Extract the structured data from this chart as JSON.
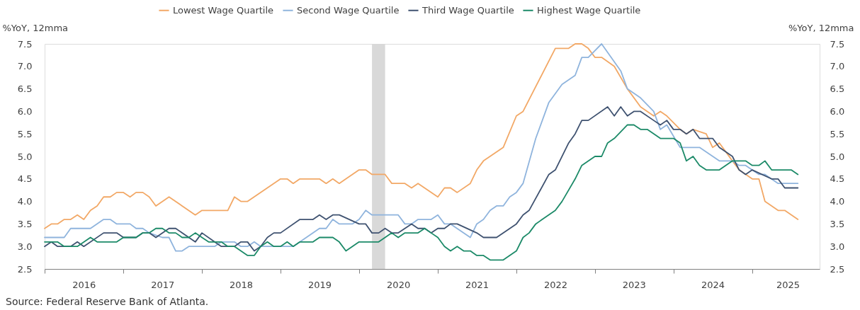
{
  "chart_data": {
    "type": "line",
    "ylabel": "%YoY, 12mma",
    "y2label": "%YoY, 12mma",
    "xlim": [
      "2016-01-01",
      "2025-11-10"
    ],
    "xticks": [
      {
        "value": "2016-01-01",
        "label": null
      },
      {
        "value": "2016-07-01",
        "label": "2016"
      },
      {
        "value": "2017-01-01",
        "label": null
      },
      {
        "value": "2017-07-01",
        "label": "2017"
      },
      {
        "value": "2018-01-01",
        "label": null
      },
      {
        "value": "2018-07-01",
        "label": "2018"
      },
      {
        "value": "2019-01-01",
        "label": null
      },
      {
        "value": "2019-07-01",
        "label": "2019"
      },
      {
        "value": "2020-01-01",
        "label": null
      },
      {
        "value": "2020-07-01",
        "label": "2020"
      },
      {
        "value": "2021-01-01",
        "label": null
      },
      {
        "value": "2021-07-01",
        "label": "2021"
      },
      {
        "value": "2022-01-01",
        "label": null
      },
      {
        "value": "2022-07-01",
        "label": "2022"
      },
      {
        "value": "2023-01-01",
        "label": null
      },
      {
        "value": "2023-07-01",
        "label": "2023"
      },
      {
        "value": "2024-01-01",
        "label": null
      },
      {
        "value": "2024-07-01",
        "label": "2024"
      },
      {
        "value": "2025-01-01",
        "label": null
      },
      {
        "value": "2025-06-15",
        "label": "2025"
      }
    ],
    "ylim": [
      2.5,
      7.5
    ],
    "yticks": [
      {
        "value": 2.5,
        "label": "2.5"
      },
      {
        "value": 3,
        "label": "3.0"
      },
      {
        "value": 3.5,
        "label": "3.5"
      },
      {
        "value": 4,
        "label": "4.0"
      },
      {
        "value": 4.5,
        "label": "4.5"
      },
      {
        "value": 5,
        "label": "5.0"
      },
      {
        "value": 5.5,
        "label": "5.5"
      },
      {
        "value": 6,
        "label": "6.0"
      },
      {
        "value": 6.5,
        "label": "6.5"
      },
      {
        "value": 7,
        "label": "7.0"
      },
      {
        "value": 7.5,
        "label": "7.5"
      }
    ],
    "y2lim": [
      2.5,
      7.5
    ],
    "y2ticks": [
      {
        "value": 2.5,
        "label": "2.5"
      },
      {
        "value": 3,
        "label": "3.0"
      },
      {
        "value": 3.5,
        "label": "3.5"
      },
      {
        "value": 4,
        "label": "4.0"
      },
      {
        "value": 4.5,
        "label": "4.5"
      },
      {
        "value": 5,
        "label": "5.0"
      },
      {
        "value": 5.5,
        "label": "5.5"
      },
      {
        "value": 6,
        "label": "6.0"
      },
      {
        "value": 6.5,
        "label": "6.5"
      },
      {
        "value": 7,
        "label": "7.0"
      },
      {
        "value": 7.5,
        "label": "7.5"
      }
    ],
    "grid": false,
    "legend": "top",
    "marker": "none",
    "line_style": "solid",
    "bands": [
      {
        "axis": "x",
        "from": "2020-03-01",
        "to": "2020-05-01",
        "color": "#d9d9d9"
      }
    ],
    "annotations": [
      "Source: Federal Reserve Bank of Atlanta."
    ],
    "series": [
      {
        "name": "Lowest Wage Quartile",
        "color": "#f2a866",
        "x": [
          "2016-01",
          "2016-02",
          "2016-03",
          "2016-04",
          "2016-05",
          "2016-06",
          "2016-07",
          "2016-08",
          "2016-09",
          "2016-10",
          "2016-11",
          "2016-12",
          "2017-01",
          "2017-02",
          "2017-03",
          "2017-04",
          "2017-05",
          "2017-06",
          "2017-08",
          "2017-12",
          "2018-01",
          "2018-05",
          "2018-06",
          "2018-07",
          "2018-08",
          "2019-01",
          "2019-02",
          "2019-03",
          "2019-04",
          "2019-07",
          "2019-08",
          "2019-09",
          "2019-10",
          "2020-01",
          "2020-02",
          "2020-03",
          "2020-05",
          "2020-06",
          "2020-08",
          "2020-09",
          "2020-10",
          "2021-01",
          "2021-02",
          "2021-03",
          "2021-04",
          "2021-06",
          "2021-07",
          "2021-08",
          "2021-11",
          "2022-01",
          "2022-02",
          "2022-07",
          "2022-09",
          "2022-10",
          "2022-11",
          "2022-12",
          "2023-01",
          "2023-02",
          "2023-04",
          "2023-06",
          "2023-08",
          "2023-10",
          "2023-11",
          "2023-12",
          "2024-02",
          "2024-03",
          "2024-04",
          "2024-06",
          "2024-07",
          "2024-08",
          "2024-10",
          "2024-11",
          "2025-01",
          "2025-02",
          "2025-03",
          "2025-05",
          "2025-06",
          "2025-08"
        ],
        "values": [
          3.4,
          3.5,
          3.5,
          3.6,
          3.6,
          3.7,
          3.6,
          3.8,
          3.9,
          4.1,
          4.1,
          4.2,
          4.2,
          4.1,
          4.2,
          4.2,
          4.1,
          3.9,
          4.1,
          3.7,
          3.8,
          3.8,
          4.1,
          4.0,
          4.0,
          4.5,
          4.5,
          4.4,
          4.5,
          4.5,
          4.4,
          4.5,
          4.4,
          4.7,
          4.7,
          4.6,
          4.6,
          4.4,
          4.4,
          4.3,
          4.4,
          4.1,
          4.3,
          4.3,
          4.2,
          4.4,
          4.7,
          4.9,
          5.2,
          5.9,
          6.0,
          7.4,
          7.4,
          7.5,
          7.5,
          7.4,
          7.2,
          7.2,
          7.0,
          6.5,
          6.1,
          5.9,
          6.0,
          5.9,
          5.6,
          5.5,
          5.6,
          5.5,
          5.2,
          5.3,
          4.9,
          4.7,
          4.5,
          4.5,
          4.0,
          3.8,
          3.8,
          3.6
        ]
      },
      {
        "name": "Second Wage Quartile",
        "color": "#8fb4dd",
        "x": [
          "2016-01",
          "2016-04",
          "2016-05",
          "2016-08",
          "2016-10",
          "2016-11",
          "2016-12",
          "2017-02",
          "2017-03",
          "2017-04",
          "2017-05",
          "2017-07",
          "2017-08",
          "2017-09",
          "2017-10",
          "2017-11",
          "2018-03",
          "2018-04",
          "2018-06",
          "2018-07",
          "2018-08",
          "2018-09",
          "2018-10",
          "2019-03",
          "2019-07",
          "2019-08",
          "2019-09",
          "2019-10",
          "2019-12",
          "2020-01",
          "2020-02",
          "2020-03",
          "2020-07",
          "2020-08",
          "2020-09",
          "2020-10",
          "2020-12",
          "2021-01",
          "2021-02",
          "2021-03",
          "2021-06",
          "2021-07",
          "2021-08",
          "2021-09",
          "2021-10",
          "2021-11",
          "2021-12",
          "2022-01",
          "2022-02",
          "2022-04",
          "2022-06",
          "2022-08",
          "2022-10",
          "2022-11",
          "2022-12",
          "2023-02",
          "2023-05",
          "2023-06",
          "2023-08",
          "2023-10",
          "2023-11",
          "2023-12",
          "2024-02",
          "2024-05",
          "2024-08",
          "2024-10",
          "2024-11",
          "2024-12",
          "2025-02",
          "2025-03",
          "2025-05",
          "2025-08"
        ],
        "values": [
          3.2,
          3.2,
          3.4,
          3.4,
          3.6,
          3.6,
          3.5,
          3.5,
          3.4,
          3.4,
          3.3,
          3.2,
          3.2,
          2.9,
          2.9,
          3.0,
          3.0,
          3.1,
          3.1,
          3.0,
          3.0,
          3.1,
          3.0,
          3.0,
          3.4,
          3.4,
          3.6,
          3.5,
          3.5,
          3.6,
          3.8,
          3.7,
          3.7,
          3.5,
          3.5,
          3.6,
          3.6,
          3.7,
          3.5,
          3.5,
          3.2,
          3.5,
          3.6,
          3.8,
          3.9,
          3.9,
          4.1,
          4.2,
          4.4,
          5.4,
          6.2,
          6.6,
          6.8,
          7.2,
          7.2,
          7.5,
          6.9,
          6.5,
          6.3,
          6.0,
          5.6,
          5.7,
          5.2,
          5.2,
          4.9,
          4.9,
          4.8,
          4.8,
          4.6,
          4.6,
          4.4,
          4.4
        ]
      },
      {
        "name": "Third Wage Quartile",
        "color": "#3f5270",
        "x": [
          "2016-01",
          "2016-02",
          "2016-03",
          "2016-05",
          "2016-06",
          "2016-07",
          "2016-10",
          "2016-12",
          "2017-01",
          "2017-03",
          "2017-04",
          "2017-05",
          "2017-06",
          "2017-08",
          "2017-09",
          "2017-12",
          "2018-01",
          "2018-03",
          "2018-04",
          "2018-06",
          "2018-07",
          "2018-08",
          "2018-09",
          "2018-10",
          "2018-11",
          "2018-12",
          "2019-01",
          "2019-04",
          "2019-06",
          "2019-07",
          "2019-08",
          "2019-09",
          "2019-10",
          "2020-01",
          "2020-02",
          "2020-03",
          "2020-04",
          "2020-05",
          "2020-06",
          "2020-07",
          "2020-09",
          "2020-10",
          "2020-11",
          "2020-12",
          "2021-01",
          "2021-02",
          "2021-03",
          "2021-04",
          "2021-07",
          "2021-08",
          "2021-10",
          "2022-01",
          "2022-02",
          "2022-03",
          "2022-06",
          "2022-07",
          "2022-09",
          "2022-10",
          "2022-11",
          "2022-12",
          "2023-03",
          "2023-04",
          "2023-05",
          "2023-06",
          "2023-07",
          "2023-08",
          "2023-10",
          "2023-11",
          "2023-12",
          "2024-01",
          "2024-02",
          "2024-03",
          "2024-04",
          "2024-05",
          "2024-07",
          "2024-08",
          "2024-10",
          "2024-11",
          "2024-12",
          "2025-01",
          "2025-04",
          "2025-05",
          "2025-06",
          "2025-08"
        ],
        "values": [
          3.0,
          3.1,
          3.0,
          3.0,
          3.1,
          3.0,
          3.3,
          3.3,
          3.2,
          3.2,
          3.3,
          3.3,
          3.2,
          3.4,
          3.4,
          3.1,
          3.3,
          3.1,
          3.0,
          3.0,
          3.1,
          3.1,
          2.9,
          3.0,
          3.2,
          3.3,
          3.3,
          3.6,
          3.6,
          3.7,
          3.6,
          3.7,
          3.7,
          3.5,
          3.5,
          3.3,
          3.3,
          3.4,
          3.3,
          3.3,
          3.5,
          3.4,
          3.4,
          3.3,
          3.4,
          3.4,
          3.5,
          3.5,
          3.3,
          3.2,
          3.2,
          3.5,
          3.7,
          3.8,
          4.6,
          4.7,
          5.3,
          5.5,
          5.8,
          5.8,
          6.1,
          5.9,
          6.1,
          5.9,
          6.0,
          6.0,
          5.8,
          5.7,
          5.8,
          5.6,
          5.6,
          5.5,
          5.6,
          5.4,
          5.4,
          5.2,
          5.0,
          4.7,
          4.6,
          4.7,
          4.5,
          4.5,
          4.3,
          4.3
        ]
      },
      {
        "name": "Highest Wage Quartile",
        "color": "#1c8a68",
        "x": [
          "2016-01",
          "2016-03",
          "2016-04",
          "2016-06",
          "2016-08",
          "2016-09",
          "2016-12",
          "2017-01",
          "2017-03",
          "2017-04",
          "2017-05",
          "2017-06",
          "2017-07",
          "2017-08",
          "2017-09",
          "2017-10",
          "2017-11",
          "2017-12",
          "2018-01",
          "2018-02",
          "2018-04",
          "2018-05",
          "2018-06",
          "2018-08",
          "2018-09",
          "2018-10",
          "2018-11",
          "2018-12",
          "2019-01",
          "2019-02",
          "2019-03",
          "2019-04",
          "2019-06",
          "2019-07",
          "2019-09",
          "2019-10",
          "2019-11",
          "2019-12",
          "2020-01",
          "2020-04",
          "2020-05",
          "2020-06",
          "2020-07",
          "2020-08",
          "2020-10",
          "2020-11",
          "2020-12",
          "2021-01",
          "2021-02",
          "2021-03",
          "2021-04",
          "2021-05",
          "2021-06",
          "2021-07",
          "2021-08",
          "2021-09",
          "2021-11",
          "2022-01",
          "2022-02",
          "2022-03",
          "2022-04",
          "2022-05",
          "2022-07",
          "2022-08",
          "2022-10",
          "2022-11",
          "2023-01",
          "2023-02",
          "2023-03",
          "2023-04",
          "2023-06",
          "2023-07",
          "2023-08",
          "2023-09",
          "2023-11",
          "2024-01",
          "2024-02",
          "2024-03",
          "2024-04",
          "2024-05",
          "2024-06",
          "2024-08",
          "2024-10",
          "2024-12",
          "2025-01",
          "2025-02",
          "2025-03",
          "2025-04",
          "2025-07",
          "2025-08"
        ],
        "values": [
          3.1,
          3.1,
          3.0,
          3.0,
          3.2,
          3.1,
          3.1,
          3.2,
          3.2,
          3.3,
          3.3,
          3.4,
          3.4,
          3.3,
          3.3,
          3.2,
          3.2,
          3.3,
          3.2,
          3.1,
          3.1,
          3.0,
          3.0,
          2.8,
          2.8,
          3.0,
          3.1,
          3.0,
          3.0,
          3.1,
          3.0,
          3.1,
          3.1,
          3.2,
          3.2,
          3.1,
          2.9,
          3.0,
          3.1,
          3.1,
          3.2,
          3.3,
          3.2,
          3.3,
          3.3,
          3.4,
          3.3,
          3.2,
          3.0,
          2.9,
          3.0,
          2.9,
          2.9,
          2.8,
          2.8,
          2.7,
          2.7,
          2.9,
          3.2,
          3.3,
          3.5,
          3.6,
          3.8,
          4.0,
          4.5,
          4.8,
          5.0,
          5.0,
          5.3,
          5.4,
          5.7,
          5.7,
          5.6,
          5.6,
          5.4,
          5.4,
          5.3,
          4.9,
          5.0,
          4.8,
          4.7,
          4.7,
          4.9,
          4.9,
          4.8,
          4.8,
          4.9,
          4.7,
          4.7,
          4.6
        ]
      }
    ]
  }
}
